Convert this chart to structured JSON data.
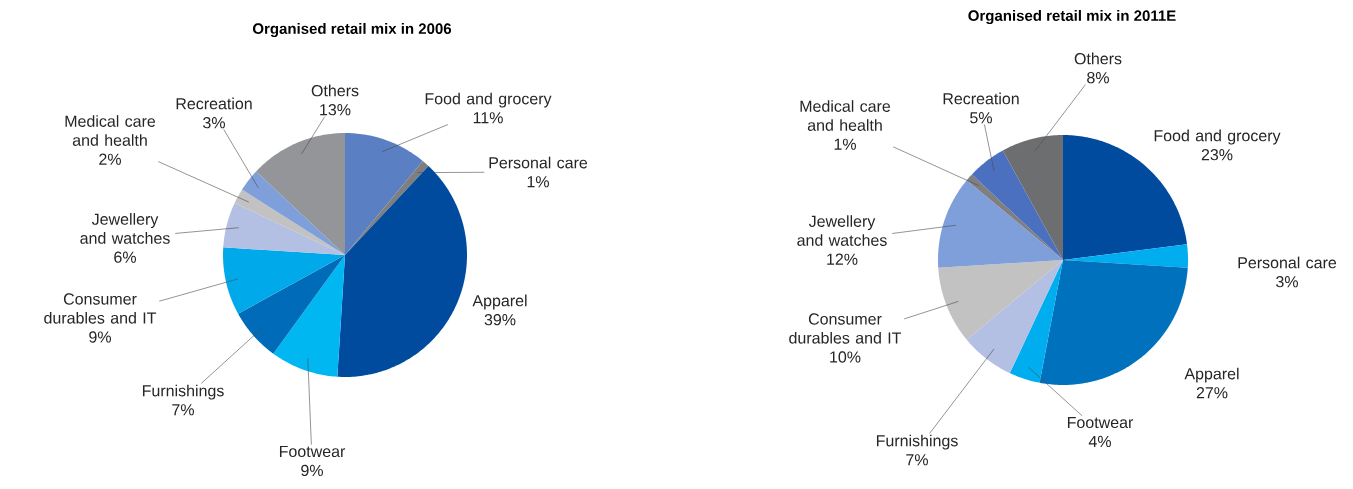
{
  "chart_data": [
    {
      "type": "pie",
      "title": "Organised retail mix in 2006",
      "categories": [
        "Food and grocery",
        "Personal care",
        "Apparel",
        "Footwear",
        "Furnishings",
        "Consumer durables and IT",
        "Jewellery and watches",
        "Medical care and health",
        "Recreation",
        "Others"
      ],
      "values": [
        11,
        1,
        39,
        9,
        7,
        9,
        6,
        2,
        3,
        13
      ],
      "value_labels": [
        "11%",
        "1%",
        "39%",
        "9%",
        "7%",
        "9%",
        "6%",
        "2%",
        "3%",
        "13%"
      ],
      "colors": [
        "#5a7fc2",
        "#7f7f7f",
        "#004b9e",
        "#00b7f1",
        "#006bb8",
        "#00a9ea",
        "#b3bfe3",
        "#c2c2c2",
        "#7f9fdb",
        "#949599"
      ]
    },
    {
      "type": "pie",
      "title": "Organised retail mix in 2011E",
      "categories": [
        "Food and grocery",
        "Personal care",
        "Apparel",
        "Footwear",
        "Furnishings",
        "Consumer durables and IT",
        "Jewellery and watches",
        "Medical care and health",
        "Recreation",
        "Others"
      ],
      "values": [
        23,
        3,
        27,
        4,
        7,
        10,
        12,
        1,
        5,
        8
      ],
      "value_labels": [
        "23%",
        "3%",
        "27%",
        "4%",
        "7%",
        "10%",
        "12%",
        "1%",
        "5%",
        "8%"
      ],
      "colors": [
        "#004b9e",
        "#00aeef",
        "#0071bc",
        "#00aeef",
        "#b3bfe3",
        "#c2c2c2",
        "#7f9fdb",
        "#7f7f7f",
        "#4c70c0",
        "#6d6e70"
      ]
    }
  ]
}
